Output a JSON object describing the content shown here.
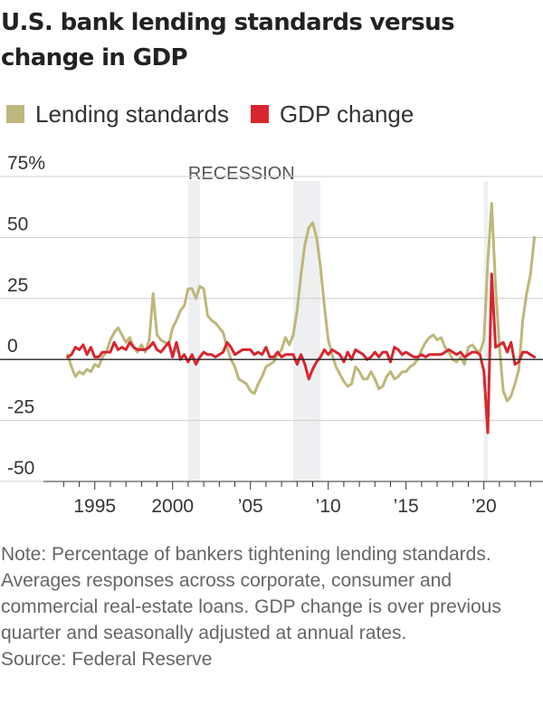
{
  "title": "U.S. bank lending standards versus change in GDP",
  "legend": [
    {
      "label": "Lending standards",
      "color": "#BDB77B"
    },
    {
      "label": "GDP change",
      "color": "#D7262E"
    }
  ],
  "note": "Note: Percentage of bankers tightening lending standards. Averages responses across corporate, consumer and commercial real-estate loans. GDP change is over previous quarter and seasonally adjusted at annual rates.",
  "source": "Source: Federal Reserve",
  "chart_data": {
    "type": "line",
    "title": "U.S. bank lending standards versus change in GDP",
    "xlabel": "",
    "ylabel": "",
    "xlim": [
      1991.7,
      2023.8
    ],
    "ylim": [
      -50,
      75
    ],
    "y_ticks": [
      75,
      50,
      25,
      0,
      -25,
      -50
    ],
    "y_tick_labels": [
      "75%",
      "50",
      "25",
      "0",
      "-25",
      "-50"
    ],
    "x_tick_labels": [
      {
        "x": 1995,
        "label": "1995"
      },
      {
        "x": 2000,
        "label": "2000"
      },
      {
        "x": 2005,
        "label": "’05"
      },
      {
        "x": 2010,
        "label": "’10"
      },
      {
        "x": 2015,
        "label": "’15"
      },
      {
        "x": 2020,
        "label": "’20"
      }
    ],
    "grid": true,
    "legend_position": "top",
    "recession_label": "RECESSION",
    "recessions": [
      [
        2001.0,
        2001.75
      ],
      [
        2007.75,
        2009.5
      ],
      [
        2020.0,
        2020.25
      ]
    ],
    "series": [
      {
        "name": "Lending standards",
        "color": "#BDB77B",
        "points": [
          [
            1993.25,
            2
          ],
          [
            1993.5,
            -3
          ],
          [
            1993.75,
            -7
          ],
          [
            1994.0,
            -5
          ],
          [
            1994.25,
            -6
          ],
          [
            1994.5,
            -4
          ],
          [
            1994.75,
            -5
          ],
          [
            1995.0,
            -2
          ],
          [
            1995.25,
            -3
          ],
          [
            1995.5,
            1
          ],
          [
            1995.75,
            3
          ],
          [
            1996.0,
            8
          ],
          [
            1996.25,
            11
          ],
          [
            1996.5,
            13
          ],
          [
            1996.75,
            10
          ],
          [
            1997.0,
            7
          ],
          [
            1997.25,
            9
          ],
          [
            1997.5,
            5
          ],
          [
            1997.75,
            3
          ],
          [
            1998.0,
            6
          ],
          [
            1998.25,
            3
          ],
          [
            1998.5,
            8
          ],
          [
            1998.75,
            27
          ],
          [
            1999.0,
            10
          ],
          [
            1999.25,
            8
          ],
          [
            1999.5,
            7
          ],
          [
            1999.75,
            6
          ],
          [
            2000.0,
            13
          ],
          [
            2000.25,
            16
          ],
          [
            2000.5,
            20
          ],
          [
            2000.75,
            22
          ],
          [
            2001.0,
            29
          ],
          [
            2001.25,
            29
          ],
          [
            2001.5,
            25
          ],
          [
            2001.75,
            30
          ],
          [
            2002.0,
            29
          ],
          [
            2002.25,
            18
          ],
          [
            2002.5,
            16
          ],
          [
            2002.75,
            15
          ],
          [
            2003.0,
            13
          ],
          [
            2003.25,
            11
          ],
          [
            2003.5,
            5
          ],
          [
            2003.75,
            0
          ],
          [
            2004.0,
            -3
          ],
          [
            2004.25,
            -8
          ],
          [
            2004.5,
            -9
          ],
          [
            2004.75,
            -10
          ],
          [
            2005.0,
            -13
          ],
          [
            2005.25,
            -14
          ],
          [
            2005.5,
            -10
          ],
          [
            2005.75,
            -7
          ],
          [
            2006.0,
            -3
          ],
          [
            2006.25,
            -2
          ],
          [
            2006.5,
            -1
          ],
          [
            2006.75,
            2
          ],
          [
            2007.0,
            4
          ],
          [
            2007.25,
            9
          ],
          [
            2007.5,
            6
          ],
          [
            2007.75,
            10
          ],
          [
            2008.0,
            20
          ],
          [
            2008.25,
            35
          ],
          [
            2008.5,
            47
          ],
          [
            2008.75,
            54
          ],
          [
            2009.0,
            56
          ],
          [
            2009.25,
            50
          ],
          [
            2009.5,
            38
          ],
          [
            2009.75,
            22
          ],
          [
            2010.0,
            8
          ],
          [
            2010.25,
            2
          ],
          [
            2010.5,
            -3
          ],
          [
            2010.75,
            -6
          ],
          [
            2011.0,
            -9
          ],
          [
            2011.25,
            -11
          ],
          [
            2011.5,
            -10
          ],
          [
            2011.75,
            -3
          ],
          [
            2012.0,
            -5
          ],
          [
            2012.25,
            -8
          ],
          [
            2012.5,
            -8
          ],
          [
            2012.75,
            -5
          ],
          [
            2013.0,
            -8
          ],
          [
            2013.25,
            -12
          ],
          [
            2013.5,
            -11
          ],
          [
            2013.75,
            -7
          ],
          [
            2014.0,
            -5
          ],
          [
            2014.25,
            -8
          ],
          [
            2014.5,
            -7
          ],
          [
            2014.75,
            -5
          ],
          [
            2015.0,
            -5
          ],
          [
            2015.25,
            -3
          ],
          [
            2015.5,
            -2
          ],
          [
            2015.75,
            0
          ],
          [
            2016.0,
            4
          ],
          [
            2016.25,
            7
          ],
          [
            2016.5,
            9
          ],
          [
            2016.75,
            10
          ],
          [
            2017.0,
            8
          ],
          [
            2017.25,
            9
          ],
          [
            2017.5,
            5
          ],
          [
            2017.75,
            3
          ],
          [
            2018.0,
            0
          ],
          [
            2018.25,
            -1
          ],
          [
            2018.5,
            1
          ],
          [
            2018.75,
            -2
          ],
          [
            2019.0,
            5
          ],
          [
            2019.25,
            6
          ],
          [
            2019.5,
            4
          ],
          [
            2019.75,
            3
          ],
          [
            2020.0,
            8
          ],
          [
            2020.25,
            40
          ],
          [
            2020.5,
            64
          ],
          [
            2020.75,
            30
          ],
          [
            2021.0,
            5
          ],
          [
            2021.25,
            -13
          ],
          [
            2021.5,
            -17
          ],
          [
            2021.75,
            -15
          ],
          [
            2022.0,
            -10
          ],
          [
            2022.25,
            -4
          ],
          [
            2022.5,
            16
          ],
          [
            2022.75,
            27
          ],
          [
            2023.0,
            35
          ],
          [
            2023.25,
            50
          ]
        ]
      },
      {
        "name": "GDP change",
        "color": "#D7262E",
        "points": [
          [
            1993.25,
            1
          ],
          [
            1993.5,
            2
          ],
          [
            1993.75,
            5
          ],
          [
            1994.0,
            4
          ],
          [
            1994.25,
            6
          ],
          [
            1994.5,
            2
          ],
          [
            1994.75,
            5
          ],
          [
            1995.0,
            1
          ],
          [
            1995.25,
            1
          ],
          [
            1995.5,
            3
          ],
          [
            1995.75,
            3
          ],
          [
            1996.0,
            3
          ],
          [
            1996.25,
            7
          ],
          [
            1996.5,
            4
          ],
          [
            1996.75,
            5
          ],
          [
            1997.0,
            4
          ],
          [
            1997.25,
            7
          ],
          [
            1997.5,
            5
          ],
          [
            1997.75,
            4
          ],
          [
            1998.0,
            4
          ],
          [
            1998.25,
            4
          ],
          [
            1998.5,
            5
          ],
          [
            1998.75,
            7
          ],
          [
            1999.0,
            4
          ],
          [
            1999.25,
            3
          ],
          [
            1999.5,
            5
          ],
          [
            1999.75,
            7
          ],
          [
            2000.0,
            1
          ],
          [
            2000.25,
            7
          ],
          [
            2000.5,
            0
          ],
          [
            2000.75,
            2
          ],
          [
            2001.0,
            -1
          ],
          [
            2001.25,
            2
          ],
          [
            2001.5,
            -2
          ],
          [
            2001.75,
            1
          ],
          [
            2002.0,
            3
          ],
          [
            2002.25,
            2
          ],
          [
            2002.5,
            2
          ],
          [
            2002.75,
            1
          ],
          [
            2003.0,
            2
          ],
          [
            2003.25,
            3
          ],
          [
            2003.5,
            7
          ],
          [
            2003.75,
            5
          ],
          [
            2004.0,
            2
          ],
          [
            2004.25,
            3
          ],
          [
            2004.5,
            4
          ],
          [
            2004.75,
            4
          ],
          [
            2005.0,
            4
          ],
          [
            2005.25,
            2
          ],
          [
            2005.5,
            3
          ],
          [
            2005.75,
            2
          ],
          [
            2006.0,
            5
          ],
          [
            2006.25,
            1
          ],
          [
            2006.5,
            1
          ],
          [
            2006.75,
            3
          ],
          [
            2007.0,
            1
          ],
          [
            2007.25,
            2
          ],
          [
            2007.5,
            2
          ],
          [
            2007.75,
            2
          ],
          [
            2008.0,
            -2
          ],
          [
            2008.25,
            2
          ],
          [
            2008.5,
            -2
          ],
          [
            2008.75,
            -8
          ],
          [
            2009.0,
            -4
          ],
          [
            2009.25,
            -1
          ],
          [
            2009.5,
            1
          ],
          [
            2009.75,
            4
          ],
          [
            2010.0,
            2
          ],
          [
            2010.25,
            4
          ],
          [
            2010.5,
            3
          ],
          [
            2010.75,
            2
          ],
          [
            2011.0,
            -1
          ],
          [
            2011.25,
            3
          ],
          [
            2011.5,
            0
          ],
          [
            2011.75,
            4
          ],
          [
            2012.0,
            3
          ],
          [
            2012.25,
            2
          ],
          [
            2012.5,
            0
          ],
          [
            2012.75,
            1
          ],
          [
            2013.0,
            3
          ],
          [
            2013.25,
            1
          ],
          [
            2013.5,
            3
          ],
          [
            2013.75,
            3
          ],
          [
            2014.0,
            -1
          ],
          [
            2014.25,
            5
          ],
          [
            2014.5,
            4
          ],
          [
            2014.75,
            2
          ],
          [
            2015.0,
            3
          ],
          [
            2015.25,
            2
          ],
          [
            2015.5,
            1
          ],
          [
            2015.75,
            1
          ],
          [
            2016.0,
            2
          ],
          [
            2016.25,
            1
          ],
          [
            2016.5,
            2
          ],
          [
            2016.75,
            2
          ],
          [
            2017.0,
            2
          ],
          [
            2017.25,
            2
          ],
          [
            2017.5,
            3
          ],
          [
            2017.75,
            4
          ],
          [
            2018.0,
            3
          ],
          [
            2018.25,
            2
          ],
          [
            2018.5,
            3
          ],
          [
            2018.75,
            1
          ],
          [
            2019.0,
            2
          ],
          [
            2019.25,
            3
          ],
          [
            2019.5,
            3
          ],
          [
            2019.75,
            2
          ],
          [
            2020.0,
            -5
          ],
          [
            2020.25,
            -30
          ],
          [
            2020.5,
            35
          ],
          [
            2020.75,
            5
          ],
          [
            2021.0,
            6
          ],
          [
            2021.25,
            7
          ],
          [
            2021.5,
            3
          ],
          [
            2021.75,
            7
          ],
          [
            2022.0,
            -2
          ],
          [
            2022.25,
            -1
          ],
          [
            2022.5,
            3
          ],
          [
            2022.75,
            3
          ],
          [
            2023.0,
            2
          ],
          [
            2023.25,
            1
          ]
        ]
      }
    ]
  }
}
